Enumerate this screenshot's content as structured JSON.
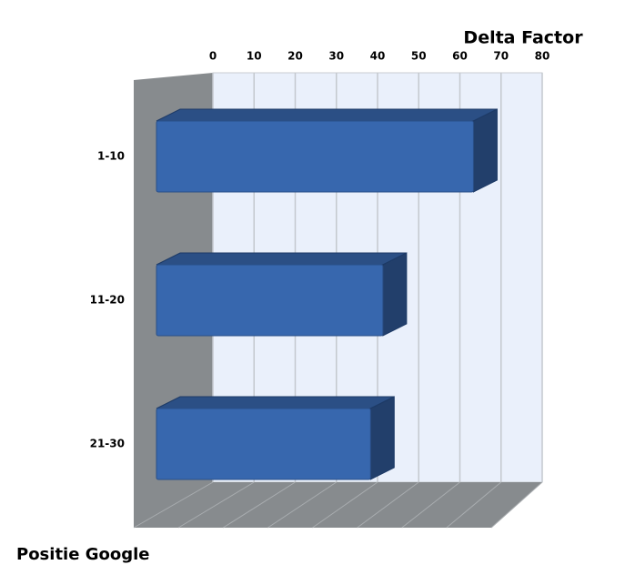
{
  "chart_data": {
    "type": "bar",
    "orientation": "horizontal",
    "x_title": "Delta Factor",
    "y_title": "Positie Google",
    "categories": [
      "1-10",
      "11-20",
      "21-30"
    ],
    "values": [
      77,
      55,
      52
    ],
    "color": "#3767ae",
    "xlim": [
      0,
      80
    ],
    "xticks": [
      0,
      10,
      20,
      30,
      40,
      50,
      60,
      70,
      80
    ],
    "grid": true
  }
}
